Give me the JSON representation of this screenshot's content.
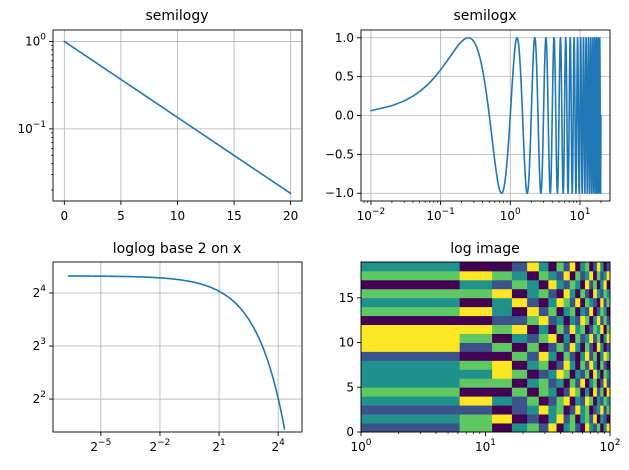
{
  "colors": {
    "line": "#1f77b4",
    "grid": "#b0b0b0"
  },
  "chart_data": [
    {
      "id": "semilogy",
      "type": "line",
      "title": "semilogy",
      "xlabel": "",
      "ylabel": "",
      "yscale": "log",
      "xlim": [
        -1,
        21
      ],
      "ylim": [
        0.015,
        1.35
      ],
      "grid": true,
      "x_ticks": [
        {
          "value": 0,
          "label": "0"
        },
        {
          "value": 5,
          "label": "5"
        },
        {
          "value": 10,
          "label": "10"
        },
        {
          "value": 15,
          "label": "15"
        },
        {
          "value": 20,
          "label": "20"
        }
      ],
      "y_ticks": [
        {
          "value": 1,
          "base": "10",
          "exp": "0"
        },
        {
          "value": 0.1,
          "base": "10",
          "exp": "−1"
        }
      ],
      "series": [
        {
          "x": [
            0,
            20
          ],
          "y": [
            1.0,
            0.0183
          ]
        }
      ]
    },
    {
      "id": "semilogx",
      "type": "line",
      "title": "semilogx",
      "xlabel": "",
      "ylabel": "",
      "xscale": "log",
      "xlim": [
        0.0072,
        27
      ],
      "ylim": [
        -1.1,
        1.1
      ],
      "grid": true,
      "x_ticks": [
        {
          "value": 0.01,
          "base": "10",
          "exp": "−2"
        },
        {
          "value": 0.1,
          "base": "10",
          "exp": "−1"
        },
        {
          "value": 1,
          "base": "10",
          "exp": "0"
        },
        {
          "value": 10,
          "base": "10",
          "exp": "1"
        }
      ],
      "y_ticks": [
        {
          "value": 1,
          "label": "1.0"
        },
        {
          "value": 0.5,
          "label": "0.5"
        },
        {
          "value": 0,
          "label": "0.0"
        },
        {
          "value": -0.5,
          "label": "−0.5"
        },
        {
          "value": -1,
          "label": "−1.0"
        }
      ],
      "series": [
        {
          "function": "sin(2*pi*x)",
          "xrange": [
            0.01,
            20
          ],
          "note_x_spacing": 0.01
        }
      ]
    },
    {
      "id": "loglog",
      "type": "line",
      "title": "loglog base 2 on x",
      "xlabel": "",
      "ylabel": "",
      "xscale": "log2",
      "yscale": "log2",
      "xlim": [
        0.0058,
        37
      ],
      "ylim": [
        2.6,
        24
      ],
      "grid": true,
      "x_ticks": [
        {
          "value": 0.03125,
          "base": "2",
          "exp": "−5"
        },
        {
          "value": 0.25,
          "base": "2",
          "exp": "−2"
        },
        {
          "value": 2,
          "base": "2",
          "exp": "1"
        },
        {
          "value": 16,
          "base": "2",
          "exp": "4"
        }
      ],
      "y_ticks": [
        {
          "value": 16,
          "base": "2",
          "exp": "4"
        },
        {
          "value": 8,
          "base": "2",
          "exp": "3"
        },
        {
          "value": 4,
          "base": "2",
          "exp": "2"
        }
      ],
      "series": [
        {
          "function": "20*exp(-x/10)",
          "xrange": [
            0.01,
            20
          ]
        }
      ]
    },
    {
      "id": "logimage",
      "type": "heatmap",
      "title": "log image",
      "xlabel": "",
      "ylabel": "",
      "xscale": "log",
      "xlim": [
        1,
        100
      ],
      "ylim": [
        0,
        19
      ],
      "grid": false,
      "x_ticks": [
        {
          "value": 1,
          "base": "10",
          "exp": "0"
        },
        {
          "value": 10,
          "base": "10",
          "exp": "1"
        },
        {
          "value": 100,
          "base": "10",
          "exp": "2"
        }
      ],
      "y_ticks": [
        {
          "value": 0,
          "label": "0"
        },
        {
          "value": 5,
          "label": "5"
        },
        {
          "value": 10,
          "label": "10"
        },
        {
          "value": 15,
          "label": "15"
        }
      ],
      "x_edges": [
        1,
        6.2,
        11.3,
        16.3,
        21.6,
        26.8,
        32,
        37.2,
        42.4,
        47.5,
        52.6,
        57.7,
        63,
        68.1,
        73.2,
        78.4,
        83.5,
        88.7,
        94,
        100
      ],
      "rows": 19,
      "colormap": [
        "#440154",
        "#3b528b",
        "#21918c",
        "#5ec962",
        "#fde725"
      ],
      "cells": [
        [
          1,
          3,
          0,
          2,
          3,
          1,
          4,
          0,
          2,
          3,
          1,
          0,
          4,
          2,
          1,
          3,
          0,
          2,
          4
        ],
        [
          2,
          3,
          4,
          0,
          1,
          0,
          2,
          4,
          1,
          3,
          0,
          2,
          3,
          1,
          4,
          0,
          2,
          1,
          0
        ],
        [
          1,
          1,
          0,
          1,
          2,
          4,
          2,
          3,
          0,
          1,
          4,
          2,
          3,
          0,
          1,
          2,
          4,
          1,
          3
        ],
        [
          2,
          4,
          2,
          1,
          3,
          0,
          1,
          3,
          4,
          0,
          2,
          1,
          4,
          3,
          0,
          2,
          1,
          3,
          2
        ],
        [
          3,
          0,
          0,
          3,
          0,
          3,
          2,
          0,
          1,
          4,
          3,
          0,
          2,
          0,
          4,
          1,
          3,
          0,
          4
        ],
        [
          2,
          3,
          3,
          0,
          2,
          3,
          1,
          2,
          0,
          3,
          1,
          4,
          0,
          2,
          3,
          0,
          1,
          4,
          1
        ],
        [
          2,
          2,
          4,
          3,
          0,
          1,
          2,
          4,
          3,
          0,
          2,
          1,
          3,
          0,
          4,
          2,
          0,
          3,
          2
        ],
        [
          2,
          3,
          4,
          0,
          2,
          3,
          0,
          1,
          4,
          2,
          0,
          3,
          1,
          4,
          2,
          0,
          3,
          1,
          0
        ],
        [
          1,
          0,
          0,
          3,
          1,
          4,
          2,
          0,
          3,
          1,
          0,
          2,
          4,
          1,
          3,
          0,
          2,
          4,
          3
        ],
        [
          4,
          1,
          3,
          0,
          3,
          0,
          1,
          3,
          1,
          4,
          2,
          0,
          3,
          1,
          0,
          4,
          2,
          0,
          1
        ],
        [
          4,
          3,
          0,
          2,
          1,
          3,
          4,
          0,
          2,
          0,
          3,
          1,
          2,
          4,
          1,
          3,
          0,
          2,
          4
        ],
        [
          4,
          4,
          3,
          4,
          0,
          2,
          0,
          3,
          1,
          4,
          2,
          3,
          0,
          1,
          3,
          2,
          4,
          0,
          3
        ],
        [
          0,
          0,
          1,
          1,
          3,
          4,
          1,
          2,
          0,
          2,
          1,
          4,
          3,
          0,
          2,
          4,
          1,
          3,
          1
        ],
        [
          3,
          4,
          2,
          0,
          4,
          1,
          3,
          0,
          2,
          3,
          0,
          2,
          1,
          4,
          0,
          1,
          3,
          2,
          0
        ],
        [
          2,
          0,
          2,
          4,
          1,
          0,
          2,
          4,
          3,
          1,
          4,
          0,
          3,
          2,
          1,
          0,
          4,
          1,
          3
        ],
        [
          3,
          3,
          4,
          0,
          2,
          3,
          1,
          0,
          4,
          2,
          0,
          3,
          1,
          0,
          4,
          2,
          1,
          3,
          2
        ],
        [
          0,
          2,
          1,
          3,
          2,
          0,
          4,
          2,
          1,
          3,
          2,
          0,
          4,
          1,
          3,
          0,
          2,
          4,
          0
        ],
        [
          3,
          4,
          3,
          2,
          0,
          3,
          2,
          1,
          4,
          0,
          3,
          1,
          2,
          4,
          0,
          3,
          1,
          2,
          4
        ],
        [
          2,
          0,
          0,
          1,
          4,
          2,
          0,
          3,
          1,
          4,
          0,
          2,
          3,
          0,
          1,
          4,
          2,
          0,
          1
        ]
      ]
    }
  ]
}
